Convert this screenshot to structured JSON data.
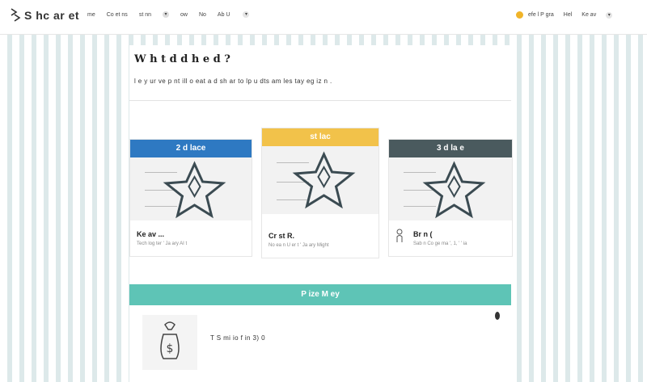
{
  "brand": {
    "name": "S hc ar et"
  },
  "nav": {
    "items": [
      "me",
      "Co  et ns",
      "st   nn",
      "ow",
      "No",
      "Ab  U"
    ],
    "icons": [
      "chevron-down-icon"
    ]
  },
  "right_nav": {
    "items": [
      "efe  l  P  gra",
      "Hel",
      "Ke  av"
    ],
    "coin_color": "#f0b429"
  },
  "main": {
    "title": "W  h  t  d  d  h  e  d ?",
    "subtitle": "l  e y  ur   ve  p  nt  ill  o  eat  a d  sh  ar   to  lp  u   dts  am  les  tay  eg  iz  n  ."
  },
  "winners": [
    {
      "place": "2 d  lace",
      "name": "Ke  av  ...",
      "meta": "Tech  log   ter    ' Ja  ary     AI  t",
      "color": "#2e79c2"
    },
    {
      "place": "st  lac",
      "name": "Cr  st  R.",
      "meta": "No     ea   n  U  er  t      ' Ja  ary   Might",
      "color": "#f2c24a"
    },
    {
      "place": "3 d  la e",
      "name": "Br  n (",
      "meta": "Sab  n  Co  ge    ma  ',  1,  ' ' ia",
      "color": "#4a5a5e"
    }
  ],
  "prize": {
    "header": "P  ize M  ey",
    "text": "T  S  mi  io  f  in  3) 0"
  },
  "colors": {
    "prize_bar": "#5ec4b6",
    "accent": "#f0b429"
  }
}
